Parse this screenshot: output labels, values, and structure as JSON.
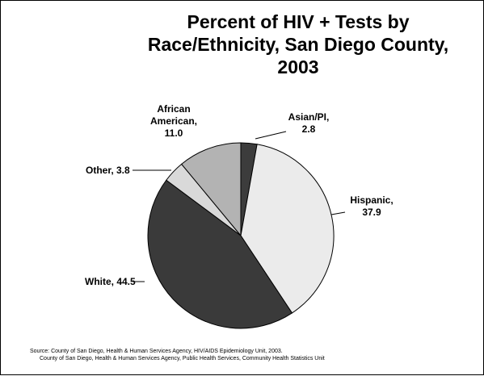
{
  "chart_data": {
    "type": "pie",
    "title_lines": [
      "Percent of HIV + Tests by",
      "Race/Ethnicity, San Diego County,",
      "2003"
    ],
    "slices": [
      {
        "label_lines": [
          "Asian/PI,",
          "2.8"
        ],
        "value": 2.8,
        "color": "#3c3c3c"
      },
      {
        "label_lines": [
          "Hispanic,",
          "37.9"
        ],
        "value": 37.9,
        "color": "#ebebeb"
      },
      {
        "label_lines": [
          "White, 44.5"
        ],
        "value": 44.5,
        "color": "#3a3a3a"
      },
      {
        "label_lines": [
          "Other, 3.8"
        ],
        "value": 3.8,
        "color": "#d9d9d9"
      },
      {
        "label_lines": [
          "African",
          "American,",
          "11.0"
        ],
        "value": 11.0,
        "color": "#b3b3b3"
      }
    ]
  },
  "footer": {
    "source_line1": "Source: County of San Diego, Health & Human Services Agency, HIV/AIDS Epidemiology Unit, 2003.",
    "source_line2": "County of San Diego, Health & Human Services Agency, Public Health Services, Community Health Statistics Unit"
  }
}
